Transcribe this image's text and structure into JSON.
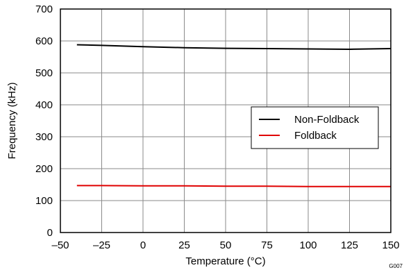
{
  "chart_data": {
    "type": "line",
    "xlabel": "Temperature (°C)",
    "ylabel": "Frequency (kHz)",
    "xlim": [
      -50,
      150
    ],
    "ylim": [
      0,
      700
    ],
    "x_ticks": [
      -50,
      -25,
      0,
      25,
      50,
      75,
      100,
      125,
      150
    ],
    "x_tick_labels": [
      "–50",
      "–25",
      "0",
      "25",
      "50",
      "75",
      "100",
      "125",
      "150"
    ],
    "y_ticks": [
      0,
      100,
      200,
      300,
      400,
      500,
      600,
      700
    ],
    "grid": true,
    "legend_position": "right",
    "figure_code": "G007",
    "series": [
      {
        "name": "Non-Foldback",
        "color": "#000000",
        "x": [
          -40,
          -25,
          0,
          25,
          50,
          75,
          100,
          125,
          150
        ],
        "values": [
          588,
          586,
          582,
          579,
          577,
          576,
          575,
          574,
          576
        ]
      },
      {
        "name": "Foldback",
        "color": "#e00000",
        "x": [
          -40,
          -25,
          0,
          25,
          50,
          75,
          100,
          125,
          150
        ],
        "values": [
          147,
          147,
          146,
          146,
          145,
          145,
          144,
          144,
          144
        ]
      }
    ]
  }
}
